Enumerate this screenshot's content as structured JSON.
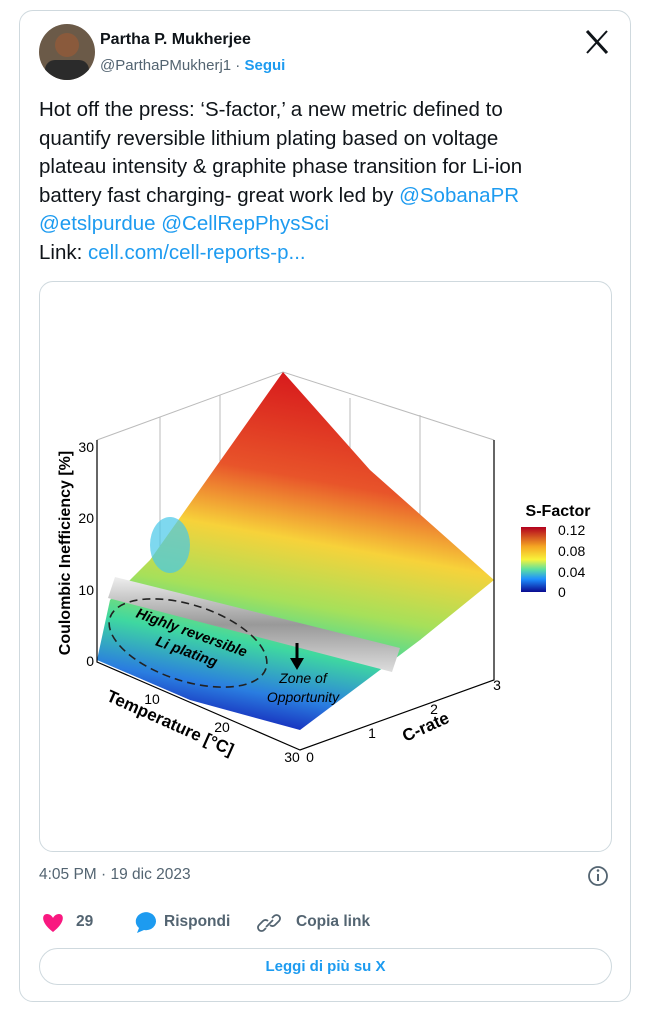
{
  "tweet": {
    "author": {
      "name": "Partha P. Mukherjee",
      "handle": "@ParthaPMukherj1",
      "separator": "·",
      "follow": "Segui"
    },
    "body": {
      "lines": [
        "Hot off the press: ‘S-factor,’ a new metric defined to",
        "quantify reversible lithium plating based on voltage",
        "plateau intensity & graphite phase transition for Li-ion",
        "battery fast charging- great work led by"
      ],
      "mentions": [
        "@SobanaPR",
        "@etslpurdue",
        "@CellRepPhysSci"
      ],
      "link_label": "Link:",
      "link": "cell.com/cell-reports-p..."
    },
    "image": {
      "colorbar_title": "S-Factor",
      "colorbar_ticks": [
        0.12,
        0.08,
        0.04,
        0
      ],
      "z_label": "Coulombic Inefficiency [%]",
      "z_ticks": [
        30,
        20,
        10,
        0
      ],
      "x_label": "Temperature [°C]",
      "x_ticks": [
        10,
        20,
        30
      ],
      "y_label": "C-rate",
      "y_ticks": [
        0,
        1,
        2,
        3
      ],
      "annotations": [
        "Highly reversible",
        "Li plating",
        "Zone of",
        "Opportunity"
      ]
    },
    "timestamp": "4:05 PM · 19 dic 2023",
    "likes": 29,
    "reply": "Rispondi",
    "copy": "Copia link",
    "read_more": "Leggi di più su X"
  }
}
